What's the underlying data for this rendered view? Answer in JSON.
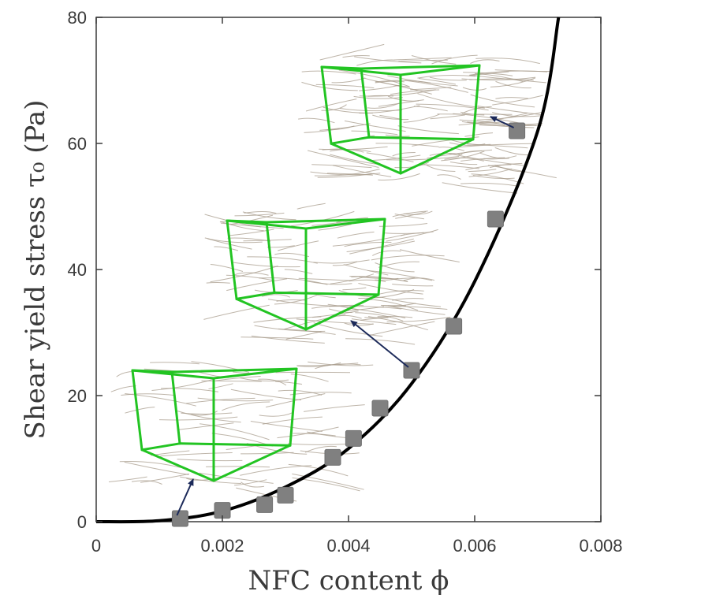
{
  "chart_data": {
    "type": "scatter",
    "xlabel": "NFC content ϕ",
    "ylabel": "Shear yield stress τ₀ (Pa)",
    "xlim": [
      0,
      0.008
    ],
    "ylim": [
      0,
      80
    ],
    "x_ticks": [
      0,
      0.002,
      0.004,
      0.006,
      0.008
    ],
    "x_tick_labels": [
      "0",
      "0.002",
      "0.004",
      "0.006",
      "0.008"
    ],
    "y_ticks": [
      0,
      20,
      40,
      60,
      80
    ],
    "y_tick_labels": [
      "0",
      "20",
      "40",
      "60",
      "80"
    ],
    "grid": false,
    "series": [
      {
        "kind": "scatter",
        "marker": "square",
        "color": "#808080",
        "x": [
          0.00133,
          0.002,
          0.00267,
          0.003,
          0.00375,
          0.00408,
          0.0045,
          0.005,
          0.00567,
          0.00633,
          0.00667
        ],
        "y": [
          0.5,
          1.8,
          2.7,
          4.2,
          10.2,
          13.2,
          18.0,
          24.0,
          31.0,
          48.0,
          62.0
        ]
      },
      {
        "kind": "line",
        "color": "#000000",
        "fit": "power law",
        "x": [
          0,
          0.001,
          0.002,
          0.003,
          0.004,
          0.005,
          0.006,
          0.007,
          0.00733
        ],
        "y": [
          0,
          0.15,
          1.68,
          5.5,
          11.6,
          21.9,
          38.1,
          62.0,
          80.0
        ]
      }
    ],
    "insets": [
      {
        "name": "network-inset-low",
        "points_to": {
          "x": 0.00133,
          "y": 0.5
        }
      },
      {
        "name": "network-inset-mid",
        "points_to": {
          "x": 0.005,
          "y": 24.0
        }
      },
      {
        "name": "network-inset-high",
        "points_to": {
          "x": 0.00667,
          "y": 62.0
        }
      }
    ],
    "colors": {
      "frame": "#22c422",
      "fiber": "#a89c8c",
      "arrow": "#1c2a5a",
      "marker": "#808080"
    }
  }
}
